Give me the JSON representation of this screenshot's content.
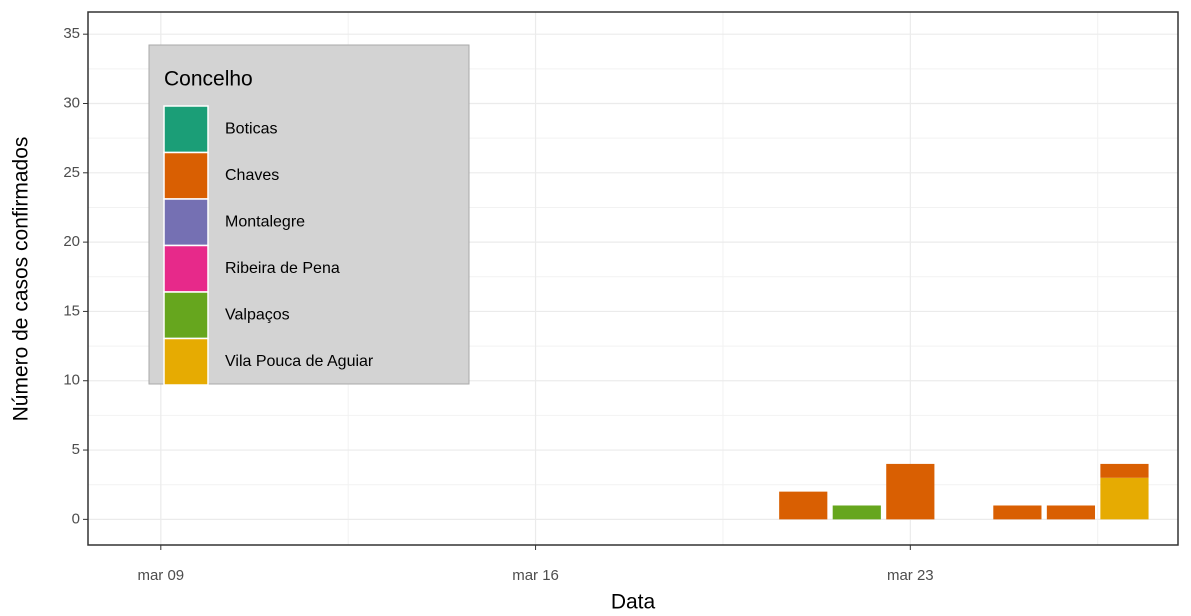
{
  "chart_data": {
    "type": "bar",
    "stacked": true,
    "x_label": "Data",
    "y_label": "Número de casos confirmados",
    "x": [
      21,
      22,
      23,
      25,
      26,
      27
    ],
    "xlim": [
      7.64,
      28.0
    ],
    "xticks": [
      {
        "value": 9,
        "label": "mar 09"
      },
      {
        "value": 16,
        "label": "mar 16"
      },
      {
        "value": 23,
        "label": "mar 23"
      }
    ],
    "ylim": [
      -1.85,
      36.6
    ],
    "yticks": [
      0,
      5,
      10,
      15,
      20,
      25,
      30,
      35
    ],
    "grid": true,
    "legend_title": "Concelho",
    "legend_position": "top-left",
    "series": [
      {
        "name": "Boticas",
        "color": "#1b9e77",
        "values": [
          0,
          0,
          0,
          0,
          0,
          0
        ]
      },
      {
        "name": "Chaves",
        "color": "#d95f02",
        "values": [
          2,
          0,
          4,
          1,
          1,
          1
        ]
      },
      {
        "name": "Montalegre",
        "color": "#7570b3",
        "values": [
          0,
          0,
          0,
          0,
          0,
          0
        ]
      },
      {
        "name": "Ribeira de Pena",
        "color": "#e7298a",
        "values": [
          0,
          0,
          0,
          0,
          0,
          0
        ]
      },
      {
        "name": "Valpaços",
        "color": "#66a61e",
        "values": [
          0,
          1,
          0,
          0,
          0,
          0
        ]
      },
      {
        "name": "Vila Pouca de Aguiar",
        "color": "#e6ab02",
        "values": [
          0,
          0,
          0,
          0,
          0,
          3
        ]
      }
    ]
  }
}
